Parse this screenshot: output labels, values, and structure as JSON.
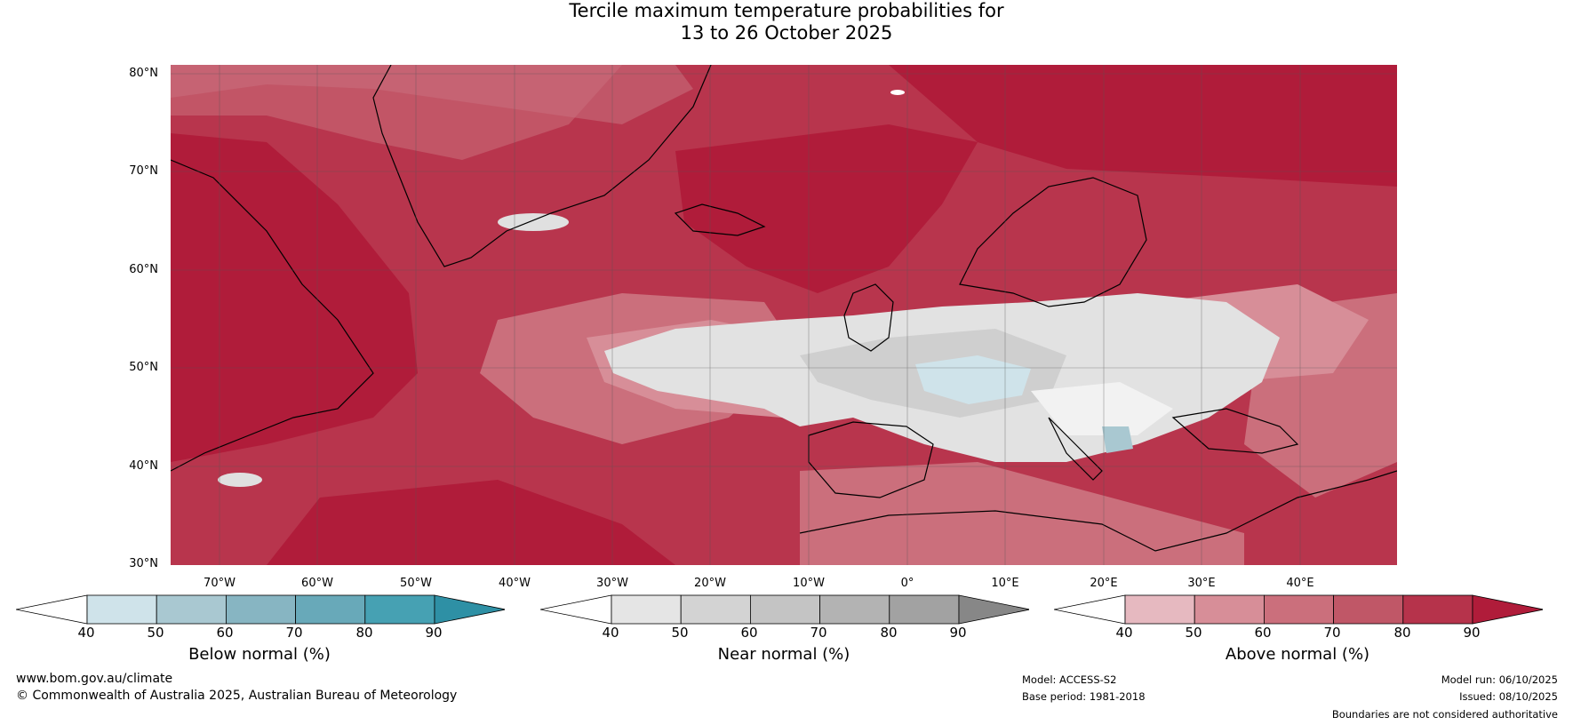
{
  "title": {
    "line1": "Tercile maximum temperature probabilities for",
    "line2": "13 to 26 October 2025"
  },
  "axes": {
    "lat_labels": [
      "80°N",
      "70°N",
      "60°N",
      "50°N",
      "40°N",
      "30°N"
    ],
    "lon_labels": [
      "70°W",
      "60°W",
      "50°W",
      "40°W",
      "30°W",
      "20°W",
      "10°W",
      "0°",
      "10°E",
      "20°E",
      "30°E",
      "40°E"
    ]
  },
  "colorbars": [
    {
      "label": "Below normal (%)",
      "ticks": [
        "40",
        "50",
        "60",
        "70",
        "80",
        "90"
      ],
      "colors": [
        "#ffffff",
        "#cfe3ea",
        "#a9c8d1",
        "#87b5c2",
        "#68a9b9",
        "#46a1b3",
        "#2e90a5"
      ]
    },
    {
      "label": "Near normal (%)",
      "ticks": [
        "40",
        "50",
        "60",
        "70",
        "80",
        "90"
      ],
      "colors": [
        "#ffffff",
        "#e5e5e5",
        "#d3d3d3",
        "#c4c4c4",
        "#b3b3b3",
        "#a2a2a2",
        "#878787"
      ]
    },
    {
      "label": "Above normal (%)",
      "ticks": [
        "40",
        "50",
        "60",
        "70",
        "80",
        "90"
      ],
      "colors": [
        "#ffffff",
        "#e6b9c0",
        "#d78e98",
        "#cb6f7c",
        "#c05767",
        "#b6334b",
        "#b01c3a"
      ]
    }
  ],
  "footer": {
    "website": "www.bom.gov.au/climate",
    "copyright": "© Commonwealth of Australia 2025, Australian Bureau of Meteorology",
    "model": "Model: ACCESS-S2",
    "base_period": "Base period: 1981-2018",
    "model_run": "Model run: 06/10/2025",
    "issued": "Issued: 08/10/2025",
    "disclaimer": "Boundaries are not considered authoritative"
  }
}
